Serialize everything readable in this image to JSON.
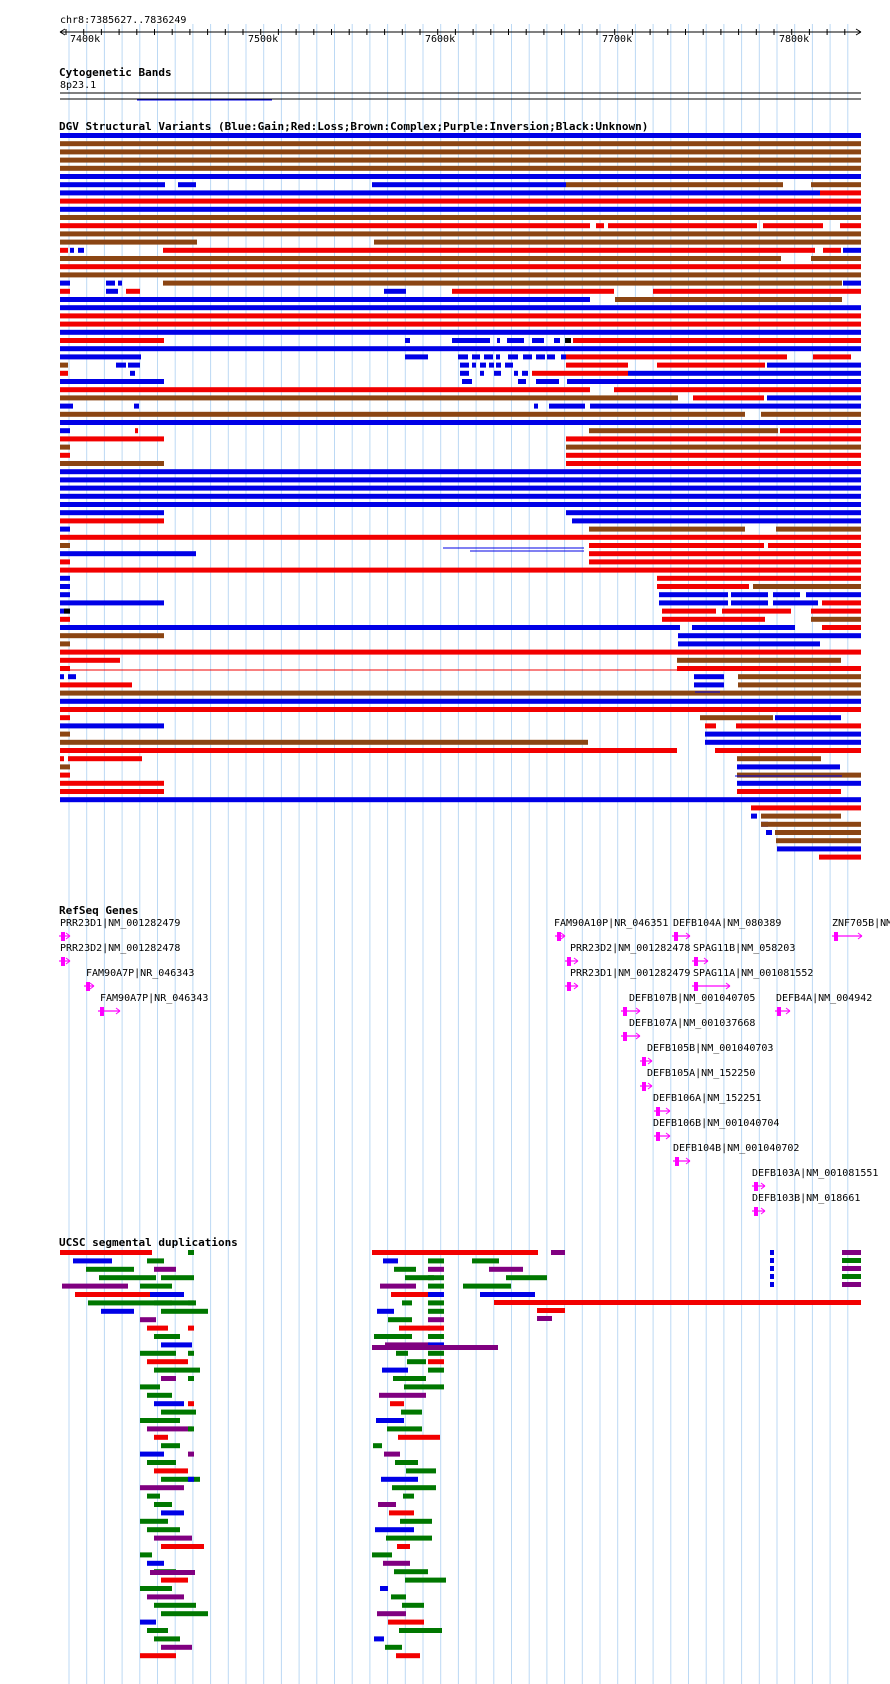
{
  "region": "chr8:7385627..7836249",
  "ruler": {
    "ticks": [
      "7400k",
      "7500k",
      "7600k",
      "7700k",
      "7800k"
    ]
  },
  "tracks": {
    "cytobands": {
      "title": "Cytogenetic Bands",
      "band": "8p23.1"
    },
    "dgv": {
      "title": "DGV Structural Variants (Blue:Gain;Red:Loss;Brown:Complex;Purple:Inversion;Black:Unknown)"
    },
    "refseq": {
      "title": "RefSeq Genes"
    },
    "segdups": {
      "title": "UCSC segmental duplications"
    }
  },
  "colors": {
    "gain": "#0000e6",
    "loss": "#f20000",
    "complex": "#8b4513",
    "inversion": "#800080",
    "unknown": "#000000",
    "gene": "#ff00ff",
    "segdup_green": "#007700",
    "grid": "#bcd9f4"
  },
  "genes": [
    "PRR23D1|NM_001282479",
    "PRR23D2|NM_001282478",
    "FAM90A7P|NR_046343",
    "FAM90A7P|NR_046343",
    "FAM90A10P|NR_046351",
    "PRR23D2|NM_001282478",
    "PRR23D1|NM_001282479",
    "DEFB104A|NM_080389",
    "SPAG11B|NM_058203",
    "SPAG11A|NM_001081552",
    "DEFB107B|NM_001040705",
    "DEFB107A|NM_001037668",
    "DEFB105B|NM_001040703",
    "DEFB105A|NM_152250",
    "DEFB106A|NM_152251",
    "DEFB106B|NM_001040704",
    "DEFB104B|NM_001040702",
    "DEFB103A|NM_001081551",
    "DEFB103B|NM_018661",
    "DEFB4A|NM_004942",
    "ZNF705B|NM"
  ]
}
